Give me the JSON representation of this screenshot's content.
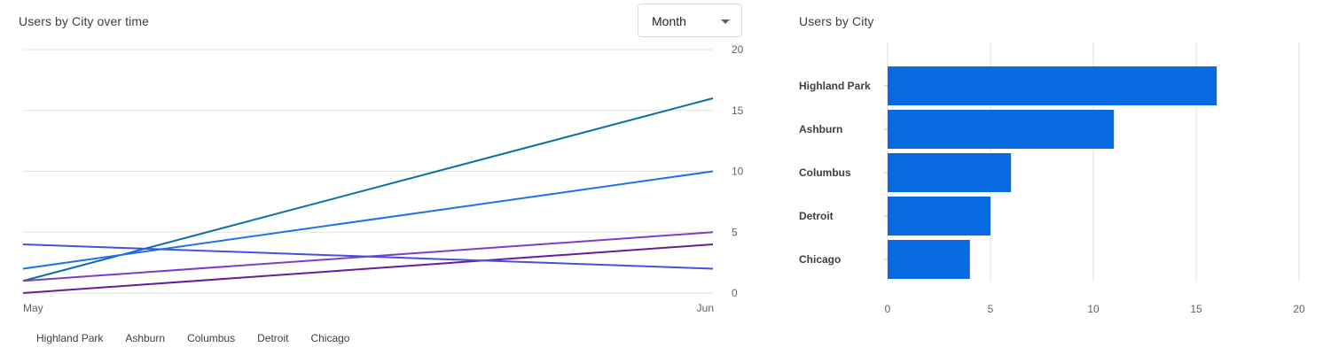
{
  "left_card": {
    "title": "Users by City over time",
    "period_dropdown": {
      "selected": "Month"
    }
  },
  "right_card": {
    "title": "Users by City"
  },
  "legend": [
    "Highland Park",
    "Ashburn",
    "Columbus",
    "Detroit",
    "Chicago"
  ],
  "chart_data": [
    {
      "type": "line",
      "title": "Users by City over time",
      "x": [
        "May",
        "Jun"
      ],
      "ylim": [
        0,
        20
      ],
      "y_ticks": [
        0,
        5,
        10,
        15,
        20
      ],
      "y_axis_side": "right",
      "grid": true,
      "legend_position": "bottom",
      "series": [
        {
          "name": "Highland Park",
          "values": [
            1,
            16
          ],
          "color": "#0b6fa8"
        },
        {
          "name": "Ashburn",
          "values": [
            2,
            10
          ],
          "color": "#1a73e8"
        },
        {
          "name": "Columbus",
          "values": [
            1,
            5
          ],
          "color": "#7b3ec9"
        },
        {
          "name": "Detroit",
          "values": [
            0,
            4
          ],
          "color": "#6a1b9a"
        },
        {
          "name": "Chicago",
          "values": [
            4,
            2
          ],
          "color": "#4650d8"
        }
      ]
    },
    {
      "type": "bar",
      "orientation": "horizontal",
      "title": "Users by City",
      "categories": [
        "Highland Park",
        "Ashburn",
        "Columbus",
        "Detroit",
        "Chicago"
      ],
      "values": [
        16,
        11,
        6,
        5,
        4
      ],
      "xlim": [
        0,
        20
      ],
      "x_ticks": [
        0,
        5,
        10,
        15,
        20
      ],
      "grid": true,
      "color": "#076ae0"
    }
  ]
}
